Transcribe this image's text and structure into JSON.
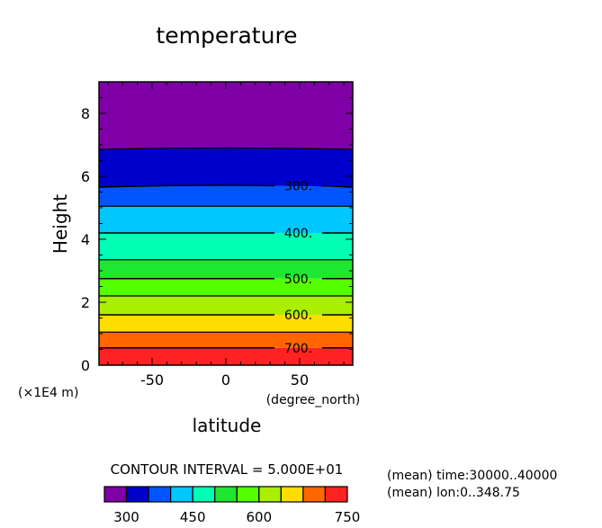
{
  "chart_data": {
    "type": "heatmap",
    "title": "temperature",
    "xlabel": "latitude",
    "ylabel": "Height",
    "x_units": "(degree_north)",
    "y_scale_label": "(×1E4 m)",
    "xlim": [
      -86,
      86
    ],
    "ylim": [
      0,
      9
    ],
    "x_ticks": [
      "-50",
      "0",
      "50"
    ],
    "y_ticks": [
      "0",
      "2",
      "4",
      "6",
      "8"
    ],
    "contour_interval_text": "CONTOUR INTERVAL = 5.000E+01",
    "contour_lines": [
      {
        "value": 250,
        "height": 6.9
      },
      {
        "value": 300,
        "height": 5.7,
        "label": "300."
      },
      {
        "value": 350,
        "height": 5.05
      },
      {
        "value": 400,
        "height": 4.2,
        "label": "400."
      },
      {
        "value": 450,
        "height": 3.35
      },
      {
        "value": 500,
        "height": 2.75,
        "label": "500."
      },
      {
        "value": 550,
        "height": 2.2
      },
      {
        "value": 600,
        "height": 1.6,
        "label": "600."
      },
      {
        "value": 650,
        "height": 1.05
      },
      {
        "value": 700,
        "height": 0.55,
        "label": "700."
      }
    ],
    "bands": [
      {
        "from": 6.9,
        "to": 9.0,
        "color": "#7f00a6"
      },
      {
        "from": 5.7,
        "to": 6.9,
        "color": "#0000cc"
      },
      {
        "from": 5.05,
        "to": 5.7,
        "color": "#0055ff"
      },
      {
        "from": 4.2,
        "to": 5.05,
        "color": "#00c8ff"
      },
      {
        "from": 3.35,
        "to": 4.2,
        "color": "#00ffb4"
      },
      {
        "from": 2.75,
        "to": 3.35,
        "color": "#1ee632"
      },
      {
        "from": 2.2,
        "to": 2.75,
        "color": "#55ff00"
      },
      {
        "from": 1.6,
        "to": 2.2,
        "color": "#aaee00"
      },
      {
        "from": 1.05,
        "to": 1.6,
        "color": "#ffdd00"
      },
      {
        "from": 0.55,
        "to": 1.05,
        "color": "#ff6600"
      },
      {
        "from": 0.0,
        "to": 0.55,
        "color": "#ff2222"
      }
    ],
    "colorbar": {
      "colors": [
        "#7f00a6",
        "#0000cc",
        "#0055ff",
        "#00c8ff",
        "#00ffb4",
        "#1ee632",
        "#55ff00",
        "#aaee00",
        "#ffdd00",
        "#ff6600",
        "#ff2222"
      ],
      "tick_labels": [
        "300",
        "450",
        "600",
        "750"
      ]
    },
    "annotations": [
      "(mean) time:30000..40000",
      "(mean) lon:0..348.75"
    ]
  }
}
